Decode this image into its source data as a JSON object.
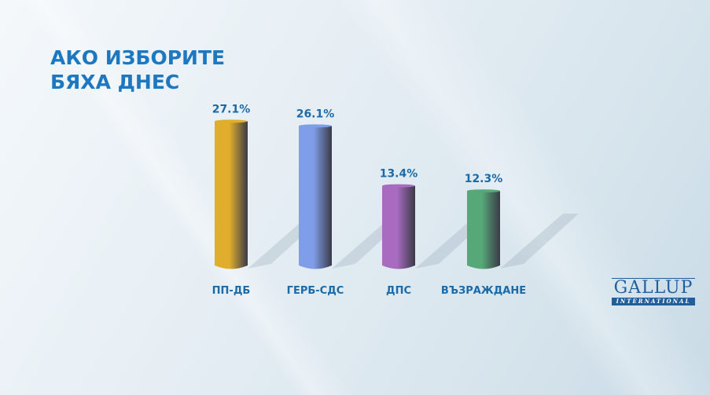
{
  "chart_data": {
    "type": "bar",
    "title": "АКО ИЗБОРИТЕ БЯХА ДНЕС",
    "title_lines": [
      "АКО ИЗБОРИТЕ",
      "БЯХА ДНЕС"
    ],
    "categories": [
      "ПП-ДБ",
      "ГЕРБ-СДС",
      "ДПС",
      "ВЪЗРАЖДАНЕ"
    ],
    "values": [
      27.1,
      26.1,
      13.4,
      12.3
    ],
    "labels": [
      "27.1%",
      "26.1%",
      "13.4%",
      "12.3%"
    ],
    "colors": [
      "#e0ae2c",
      "#7f9de8",
      "#a86bc0",
      "#56a878"
    ],
    "xlabel": "",
    "ylabel": "",
    "grid": false
  },
  "logo": {
    "name": "GALLUP",
    "sub": "INTERNATIONAL"
  }
}
